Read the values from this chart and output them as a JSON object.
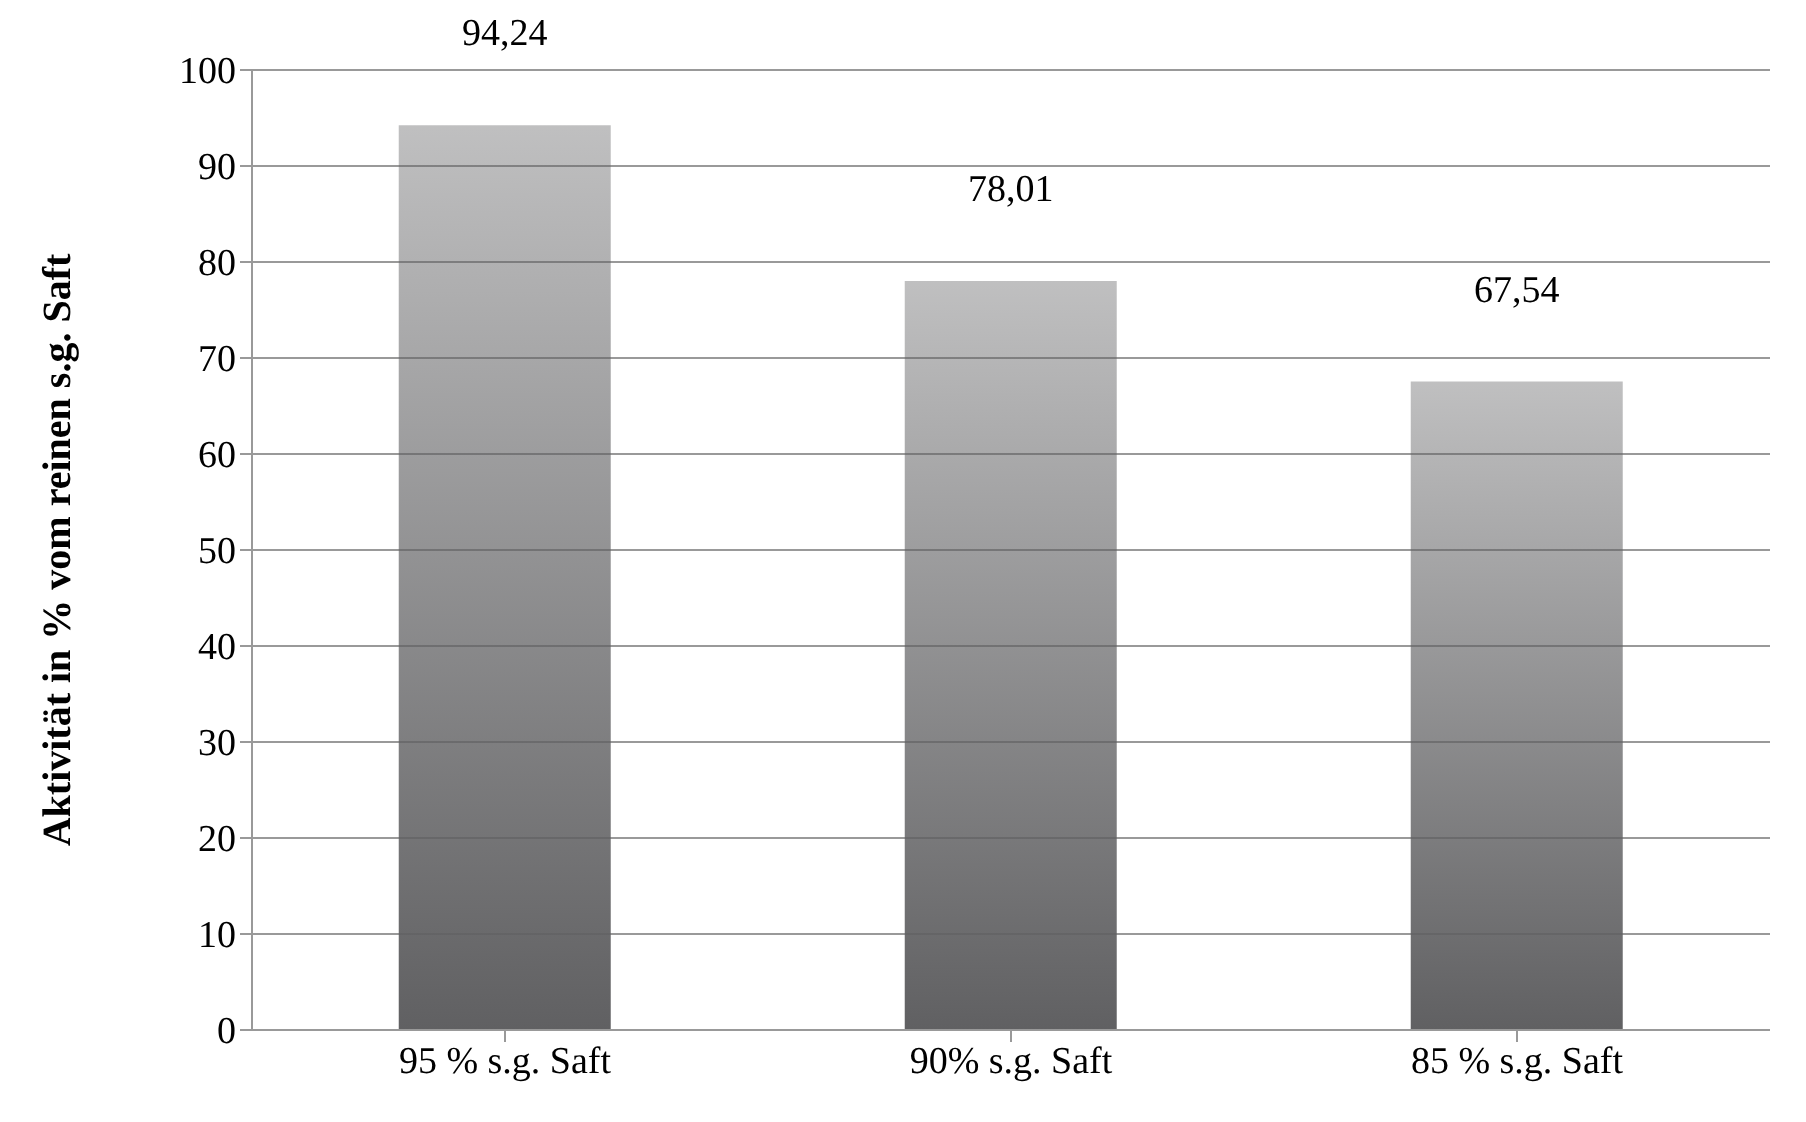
{
  "chart_data": {
    "type": "bar",
    "ylabel": "Aktivität in % vom reinen s.g. Saft",
    "categories": [
      "95 % s.g. Saft",
      "90% s.g. Saft",
      "85 % s.g. Saft"
    ],
    "values": [
      94.24,
      78.01,
      67.54
    ],
    "value_labels": [
      "94,24",
      "78,01",
      "67,54"
    ],
    "color": "#606062",
    "ylim": [
      0,
      100
    ],
    "yticks": [
      0,
      10,
      20,
      30,
      40,
      50,
      60,
      70,
      80,
      90,
      100
    ],
    "grid": "y"
  }
}
